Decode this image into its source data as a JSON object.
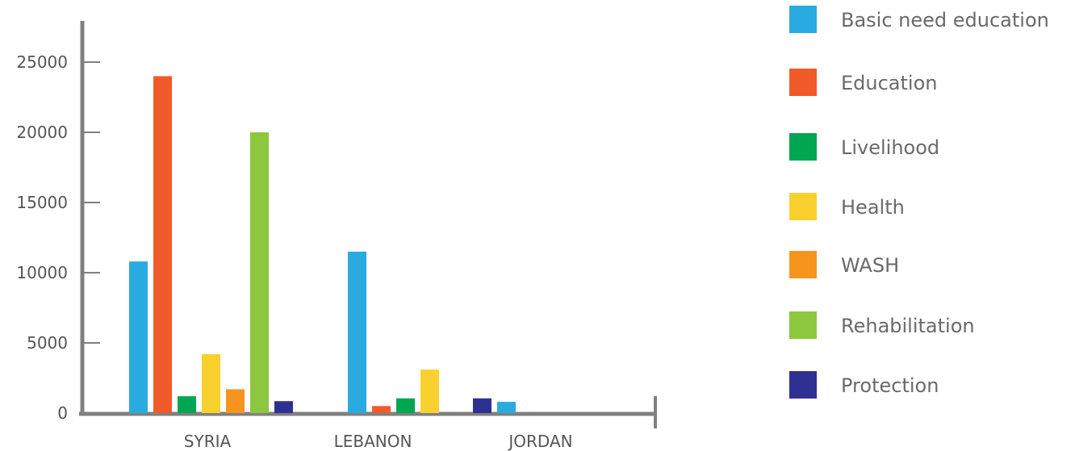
{
  "chart_data": {
    "type": "bar",
    "title": "",
    "xlabel": "",
    "ylabel": "",
    "categories": [
      "SYRIA",
      "LEBANON",
      "JORDAN"
    ],
    "ylim": [
      0,
      25000
    ],
    "yticks": [
      0,
      5000,
      10000,
      15000,
      20000,
      25000
    ],
    "ytick_labels": [
      "0",
      "5000",
      "10000",
      "15000",
      "20000",
      "25000"
    ],
    "legend_position": "right",
    "grid": false,
    "series": [
      {
        "name": "Basic need education",
        "color": "#29abe2",
        "values": [
          10800,
          11500,
          800
        ]
      },
      {
        "name": "Education",
        "color": "#f15a29",
        "values": [
          24000,
          500,
          0
        ]
      },
      {
        "name": "Livelihood",
        "color": "#00a651",
        "values": [
          1200,
          1050,
          0
        ]
      },
      {
        "name": "Health",
        "color": "#f9d12e",
        "values": [
          4200,
          3100,
          0
        ]
      },
      {
        "name": "WASH",
        "color": "#f7941d",
        "values": [
          1700,
          0,
          0
        ]
      },
      {
        "name": "Rehabilitation",
        "color": "#8dc63f",
        "values": [
          20000,
          0,
          0
        ]
      },
      {
        "name": "Protection",
        "color": "#2e3192",
        "values": [
          850,
          0,
          1050
        ]
      }
    ],
    "bars": [
      {
        "category": 0,
        "series": 0
      },
      {
        "category": 0,
        "series": 1
      },
      {
        "category": 0,
        "series": 2
      },
      {
        "category": 0,
        "series": 3
      },
      {
        "category": 0,
        "series": 4
      },
      {
        "category": 0,
        "series": 5
      },
      {
        "category": 0,
        "series": 6
      },
      {
        "category": 1,
        "series": 0
      },
      {
        "category": 1,
        "series": 1
      },
      {
        "category": 1,
        "series": 2
      },
      {
        "category": 1,
        "series": 3
      },
      {
        "category": 2,
        "series": 6
      },
      {
        "category": 2,
        "series": 0
      }
    ],
    "axis_color": "#808080"
  }
}
